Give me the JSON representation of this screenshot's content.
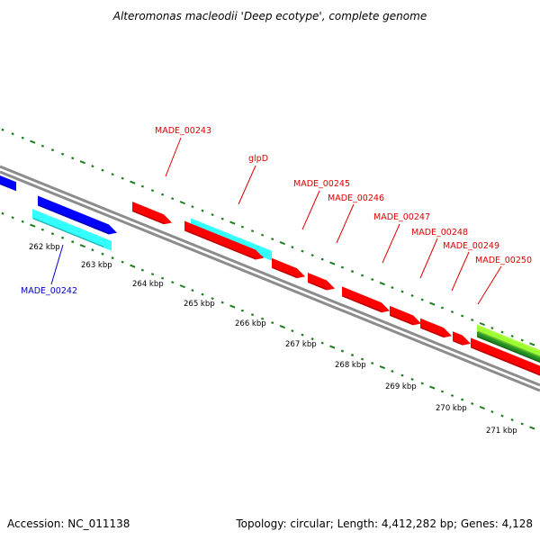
{
  "title": "Alteromonas macleodii 'Deep ecotype', complete genome",
  "footer": {
    "accession": "Accession: NC_011138",
    "topology": "Topology: circular; Length: 4,412,282 bp; Genes: 4,128"
  },
  "colors": {
    "backbone": "#8c8c8c",
    "tick": "#1e7d1e",
    "red_gene": "#ff0000",
    "blue_gene": "#0000ff",
    "cyan_gene": "#33ffff",
    "lime_gene": "#99ff33",
    "green_gene": "#228b22",
    "label_red": "#dd0000",
    "label_blue": "#0000cc"
  },
  "kbp_labels": [
    "262 kbp",
    "263 kbp",
    "264 kbp",
    "265 kbp",
    "266 kbp",
    "267 kbp",
    "268 kbp",
    "269 kbp",
    "270 kbp",
    "271 kbp"
  ],
  "gene_labels": [
    {
      "text": "MADE_00242",
      "color": "blue"
    },
    {
      "text": "MADE_00243",
      "color": "red"
    },
    {
      "text": "glpD",
      "color": "red"
    },
    {
      "text": "MADE_00245",
      "color": "red"
    },
    {
      "text": "MADE_00246",
      "color": "red"
    },
    {
      "text": "MADE_00247",
      "color": "red"
    },
    {
      "text": "MADE_00248",
      "color": "red"
    },
    {
      "text": "MADE_00249",
      "color": "red"
    },
    {
      "text": "MADE_00250",
      "color": "red"
    }
  ]
}
